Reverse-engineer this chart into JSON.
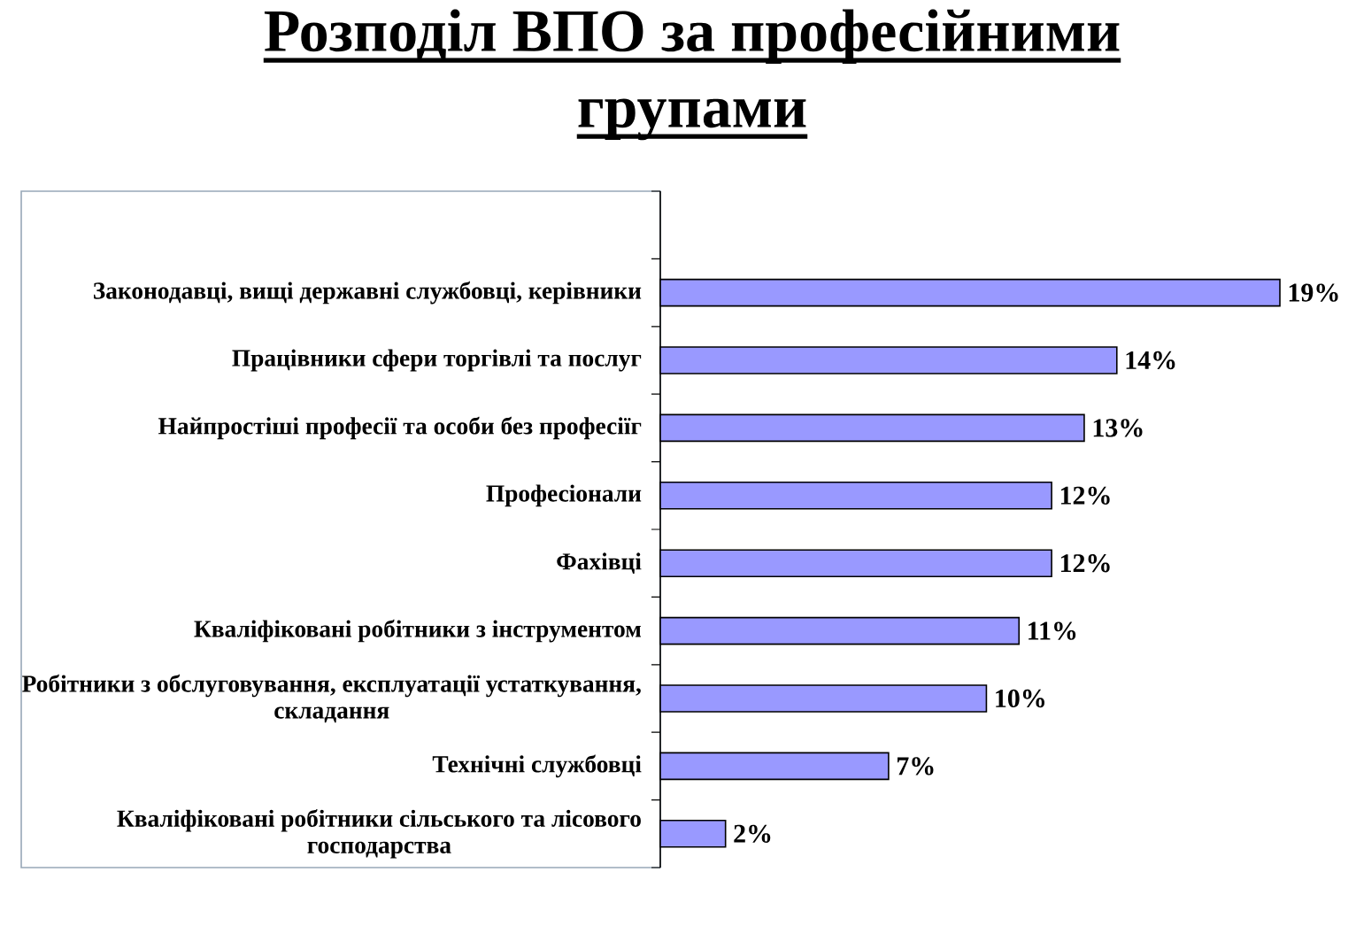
{
  "chart_data": {
    "type": "bar",
    "orientation": "horizontal",
    "title": "Розподіл ВПО за професійними групами",
    "categories": [
      null,
      "Законодавці, вищі державні службовці, керівники",
      "Працівники сфери торгівлі та послуг",
      "Найпростіші професії та особи без професіїг",
      "Професіонали",
      "Фахівці",
      "Кваліфіковані робітники з інструментом",
      "Робітники з обслуговування, експлуатації устаткування, складання",
      "Технічні службовці",
      "Кваліфіковані робітники сільського та лісового господарства"
    ],
    "values": [
      null,
      19,
      14,
      13,
      12,
      12,
      11,
      10,
      7,
      2
    ],
    "value_labels": [
      null,
      "19%",
      "14%",
      "13%",
      "12%",
      "12%",
      "11%",
      "10%",
      "7%",
      "2%"
    ],
    "color": "#9999ff"
  }
}
